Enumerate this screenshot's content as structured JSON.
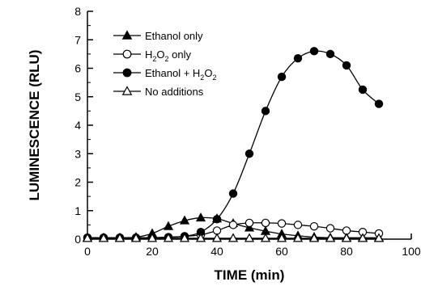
{
  "chart_data": {
    "type": "line",
    "title": "",
    "xlabel": "TIME (min)",
    "ylabel": "LUMINESCENCE (RLU)",
    "xlim": [
      0,
      100
    ],
    "ylim": [
      0,
      8
    ],
    "x_ticks": [
      0,
      20,
      40,
      60,
      80,
      100
    ],
    "y_ticks": [
      0,
      1,
      2,
      3,
      4,
      5,
      6,
      7,
      8
    ],
    "grid": false,
    "legend_position": "top-left",
    "series": [
      {
        "name": "Ethanol only",
        "marker": "filled-triangle",
        "color": "#000000",
        "x": [
          0,
          5,
          10,
          15,
          20,
          25,
          30,
          35,
          40,
          45,
          50,
          55,
          60,
          65,
          70,
          75,
          80,
          85,
          90
        ],
        "y": [
          0.05,
          0.05,
          0.05,
          0.07,
          0.2,
          0.45,
          0.65,
          0.75,
          0.72,
          0.55,
          0.4,
          0.28,
          0.18,
          0.12,
          0.07,
          0.05,
          0.05,
          0.05,
          0.05
        ]
      },
      {
        "name": "H2O2 only",
        "legend_parts": [
          "H",
          "2",
          "O",
          "2",
          " only"
        ],
        "marker": "open-circle",
        "color": "#000000",
        "x": [
          0,
          5,
          10,
          15,
          20,
          25,
          30,
          35,
          40,
          45,
          50,
          55,
          60,
          65,
          70,
          75,
          80,
          85,
          90
        ],
        "y": [
          0.05,
          0.05,
          0.05,
          0.05,
          0.05,
          0.07,
          0.1,
          0.15,
          0.3,
          0.5,
          0.57,
          0.57,
          0.55,
          0.5,
          0.45,
          0.38,
          0.3,
          0.25,
          0.2
        ]
      },
      {
        "name": "Ethanol + H2O2",
        "legend_parts": [
          "Ethanol + H",
          "2",
          "O",
          "2",
          ""
        ],
        "marker": "filled-circle",
        "color": "#000000",
        "x": [
          0,
          5,
          10,
          15,
          20,
          25,
          30,
          35,
          40,
          45,
          50,
          55,
          60,
          65,
          70,
          75,
          80,
          85,
          90
        ],
        "y": [
          0.05,
          0.05,
          0.05,
          0.05,
          0.05,
          0.07,
          0.1,
          0.25,
          0.7,
          1.6,
          3.0,
          4.5,
          5.7,
          6.35,
          6.6,
          6.5,
          6.1,
          5.25,
          4.75
        ]
      },
      {
        "name": "No additions",
        "marker": "open-triangle",
        "color": "#000000",
        "x": [
          0,
          5,
          10,
          15,
          20,
          25,
          30,
          35,
          40,
          45,
          50,
          55,
          60,
          65,
          70,
          75,
          80,
          85,
          90
        ],
        "y": [
          0.03,
          0.03,
          0.03,
          0.03,
          0.03,
          0.03,
          0.03,
          0.03,
          0.03,
          0.03,
          0.03,
          0.03,
          0.03,
          0.03,
          0.03,
          0.03,
          0.03,
          0.03,
          0.03
        ]
      }
    ]
  }
}
